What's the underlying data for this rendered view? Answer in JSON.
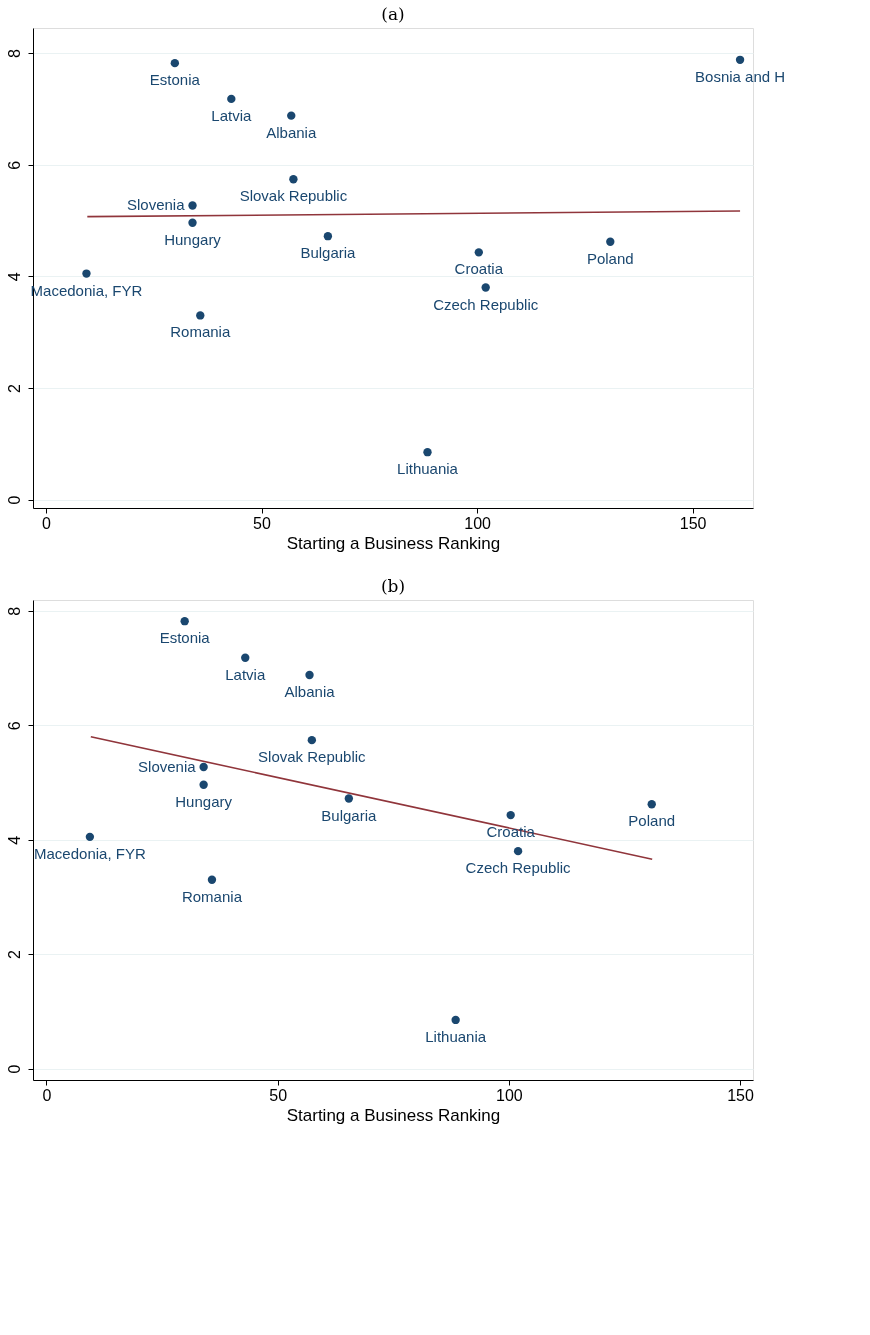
{
  "chart_data": [
    {
      "type": "scatter",
      "title": "(a)",
      "xlabel": "Starting a Business Ranking",
      "xlim": [
        -3,
        164
      ],
      "xticks": [
        0,
        50,
        100,
        150
      ],
      "ylim": [
        -0.15,
        8.45
      ],
      "yticks": [
        0,
        2,
        4,
        6,
        8
      ],
      "grid": "y",
      "series": [
        {
          "marker": "circle",
          "color": "#1a476f",
          "x": [
            29.9,
            43.0,
            56.9,
            161.0,
            57.4,
            34.0,
            34.0,
            65.4,
            100.4,
            130.9,
            9.4,
            102.0,
            35.8,
            88.5
          ],
          "values": [
            7.82,
            7.18,
            6.88,
            7.88,
            5.74,
            5.27,
            4.96,
            4.72,
            4.43,
            4.62,
            4.05,
            3.8,
            3.3,
            0.85
          ]
        },
        {
          "type": "line",
          "marker": "none",
          "color": "#90353b",
          "x": [
            9.6,
            161.0
          ],
          "values": [
            5.07,
            5.17
          ]
        }
      ],
      "annotations": [
        {
          "text": "Estonia",
          "x": 29.9,
          "y": 7.82
        },
        {
          "text": "Latvia",
          "x": 43.0,
          "y": 7.18
        },
        {
          "text": "Albania",
          "x": 56.9,
          "y": 6.88
        },
        {
          "text": "Bosnia and H",
          "x": 161.0,
          "y": 7.88
        },
        {
          "text": "Slovak Republic",
          "x": 57.4,
          "y": 5.74
        },
        {
          "text": "Slovenia",
          "x": 34.0,
          "y": 5.27
        },
        {
          "text": "Hungary",
          "x": 34.0,
          "y": 4.96
        },
        {
          "text": "Bulgaria",
          "x": 65.4,
          "y": 4.72
        },
        {
          "text": "Croatia",
          "x": 100.4,
          "y": 4.43
        },
        {
          "text": "Poland",
          "x": 130.9,
          "y": 4.62
        },
        {
          "text": "Macedonia, FYR",
          "x": 9.4,
          "y": 4.05
        },
        {
          "text": "Czech Republic",
          "x": 102.0,
          "y": 3.8
        },
        {
          "text": "Romania",
          "x": 35.8,
          "y": 3.3
        },
        {
          "text": "Lithuania",
          "x": 88.5,
          "y": 0.85
        }
      ]
    },
    {
      "type": "scatter",
      "title": "(b)",
      "xlabel": "Starting a Business Ranking",
      "xlim": [
        -2.9,
        152.8
      ],
      "xticks": [
        0,
        50,
        100,
        150
      ],
      "ylim": [
        -0.2,
        8.19
      ],
      "yticks": [
        0,
        2,
        4,
        6,
        8
      ],
      "grid": "y",
      "series": [
        {
          "marker": "circle",
          "color": "#1a476f",
          "x": [
            29.9,
            43.0,
            56.9,
            57.4,
            34.0,
            34.0,
            65.4,
            100.4,
            130.9,
            9.4,
            102.0,
            35.8,
            88.5
          ],
          "values": [
            7.82,
            7.18,
            6.88,
            5.74,
            5.27,
            4.96,
            4.72,
            4.43,
            4.62,
            4.05,
            3.8,
            3.3,
            0.85
          ]
        },
        {
          "type": "line",
          "marker": "none",
          "color": "#90353b",
          "x": [
            9.6,
            131.0
          ],
          "values": [
            5.8,
            3.66
          ]
        }
      ],
      "annotations": [
        {
          "text": "Estonia",
          "x": 29.9,
          "y": 7.82
        },
        {
          "text": "Latvia",
          "x": 43.0,
          "y": 7.18
        },
        {
          "text": "Albania",
          "x": 56.9,
          "y": 6.88
        },
        {
          "text": "Slovak Republic",
          "x": 57.4,
          "y": 5.74
        },
        {
          "text": "Slovenia",
          "x": 34.0,
          "y": 5.27
        },
        {
          "text": "Hungary",
          "x": 34.0,
          "y": 4.96
        },
        {
          "text": "Bulgaria",
          "x": 65.4,
          "y": 4.72
        },
        {
          "text": "Croatia",
          "x": 100.4,
          "y": 4.43
        },
        {
          "text": "Poland",
          "x": 130.9,
          "y": 4.62
        },
        {
          "text": "Macedonia, FYR",
          "x": 9.4,
          "y": 4.05
        },
        {
          "text": "Czech Republic",
          "x": 102.0,
          "y": 3.8
        },
        {
          "text": "Romania",
          "x": 35.8,
          "y": 3.3
        },
        {
          "text": "Lithuania",
          "x": 88.5,
          "y": 0.85
        }
      ]
    }
  ]
}
